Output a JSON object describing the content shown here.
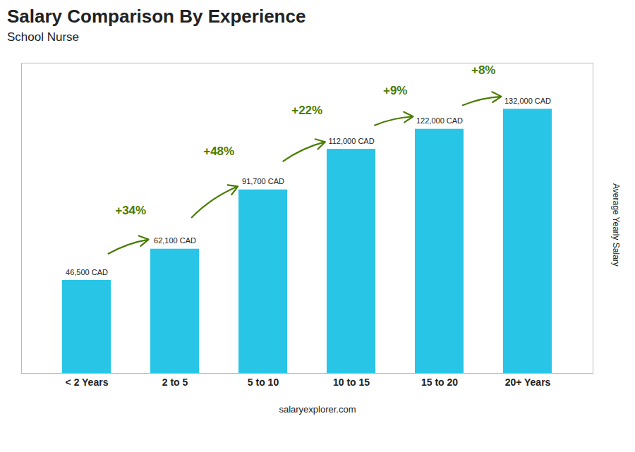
{
  "chart_data": {
    "type": "bar",
    "title": "Salary Comparison By Experience",
    "subtitle": "School Nurse",
    "ylabel": "Average Yearly Salary",
    "categories": [
      "< 2 Years",
      "2 to 5",
      "5 to 10",
      "10 to 15",
      "15 to 20",
      "20+ Years"
    ],
    "values": [
      46500,
      62100,
      91700,
      112000,
      122000,
      132000
    ],
    "value_labels": [
      "46,500 CAD",
      "62,100 CAD",
      "91,700 CAD",
      "112,000 CAD",
      "122,000 CAD",
      "132,000 CAD"
    ],
    "data_labels": true,
    "color": "#29c5e6",
    "ylim": [
      0,
      155000
    ],
    "tick_labels": "x",
    "annotations": [
      "+34%",
      "+48%",
      "+22%",
      "+9%",
      "+8%"
    ],
    "caption": "salaryexplorer.com"
  }
}
